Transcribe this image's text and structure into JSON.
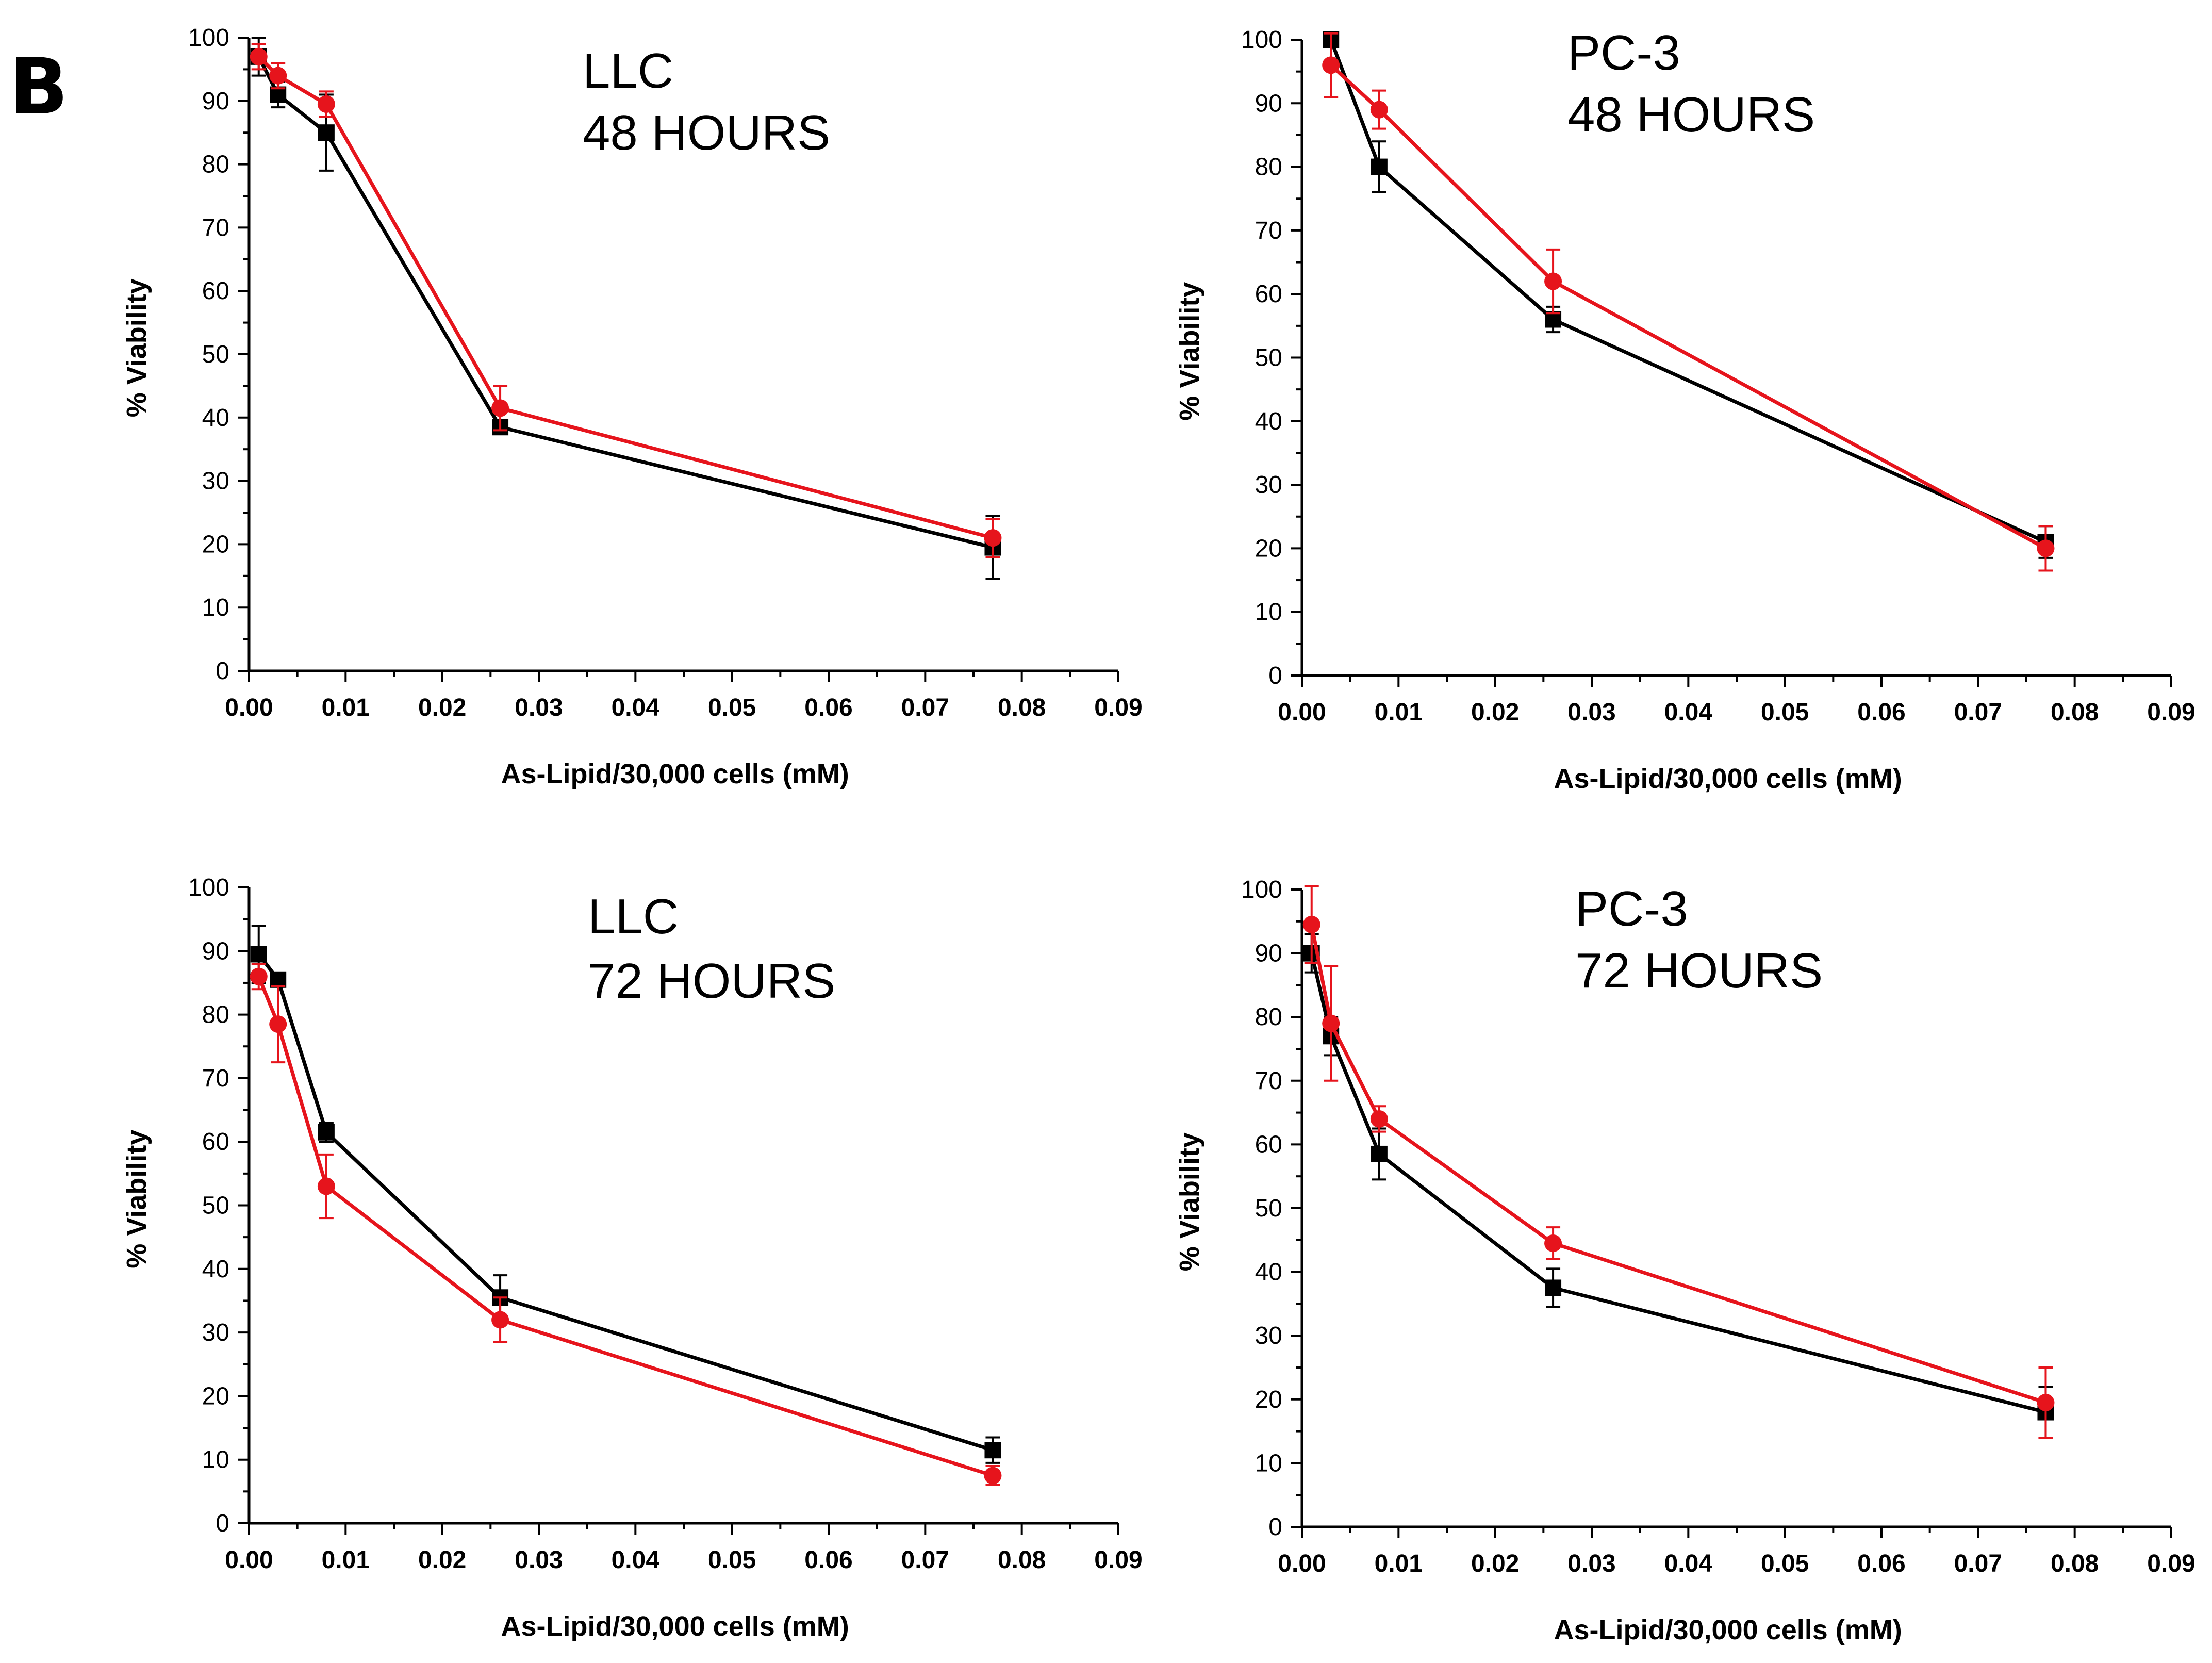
{
  "figure": {
    "letter": "B",
    "colors": {
      "control": "#000000",
      "treatment": "#e6141c"
    }
  },
  "chart_data": [
    {
      "type": "line",
      "label_line1": "LLC",
      "label_line2": "48 HOURS",
      "xlabel": "As-Lipid/30,000 cells (mM)",
      "ylabel": "% Viability",
      "xlim": [
        0,
        0.09
      ],
      "ylim": [
        0,
        100
      ],
      "xticks": [
        "0.00",
        "0.01",
        "0.02",
        "0.03",
        "0.04",
        "0.05",
        "0.06",
        "0.07",
        "0.08",
        "0.09"
      ],
      "yticks": [
        "0",
        "10",
        "20",
        "30",
        "40",
        "50",
        "60",
        "70",
        "80",
        "90",
        "100"
      ],
      "series": [
        {
          "name": "black",
          "color": "#000000",
          "marker": "square",
          "x": [
            0.001,
            0.003,
            0.008,
            0.026,
            0.077
          ],
          "y": [
            97,
            91,
            85,
            38.5,
            19.5
          ],
          "err": [
            3,
            2,
            6,
            1,
            5
          ]
        },
        {
          "name": "red",
          "color": "#e6141c",
          "marker": "circle",
          "x": [
            0.001,
            0.003,
            0.008,
            0.026,
            0.077
          ],
          "y": [
            97,
            94,
            89.5,
            41.5,
            21
          ],
          "err": [
            2,
            2,
            2,
            3.5,
            3
          ]
        }
      ]
    },
    {
      "type": "line",
      "label_line1": "PC-3",
      "label_line2": "48 HOURS",
      "xlabel": "As-Lipid/30,000 cells (mM)",
      "ylabel": "% Viability",
      "xlim": [
        0,
        0.09
      ],
      "ylim": [
        0,
        100
      ],
      "xticks": [
        "0.00",
        "0.01",
        "0.02",
        "0.03",
        "0.04",
        "0.05",
        "0.06",
        "0.07",
        "0.08",
        "0.09"
      ],
      "yticks": [
        "0",
        "10",
        "20",
        "30",
        "40",
        "50",
        "60",
        "70",
        "80",
        "90",
        "100"
      ],
      "series": [
        {
          "name": "black",
          "color": "#000000",
          "marker": "square",
          "x": [
            0.003,
            0.008,
            0.026,
            0.077
          ],
          "y": [
            100,
            80,
            56,
            21
          ],
          "err": [
            1,
            4,
            2,
            2.5
          ]
        },
        {
          "name": "red",
          "color": "#e6141c",
          "marker": "circle",
          "x": [
            0.003,
            0.008,
            0.026,
            0.077
          ],
          "y": [
            96,
            89,
            62,
            20
          ],
          "err": [
            5,
            3,
            5,
            3.5
          ]
        }
      ]
    },
    {
      "type": "line",
      "label_line1": "LLC",
      "label_line2": "72 HOURS",
      "xlabel": "As-Lipid/30,000 cells (mM)",
      "ylabel": "% Viability",
      "xlim": [
        0,
        0.09
      ],
      "ylim": [
        0,
        100
      ],
      "xticks": [
        "0.00",
        "0.01",
        "0.02",
        "0.03",
        "0.04",
        "0.05",
        "0.06",
        "0.07",
        "0.08",
        "0.09"
      ],
      "yticks": [
        "0",
        "10",
        "20",
        "30",
        "40",
        "50",
        "60",
        "70",
        "80",
        "90",
        "100"
      ],
      "series": [
        {
          "name": "black",
          "color": "#000000",
          "marker": "square",
          "x": [
            0.001,
            0.003,
            0.008,
            0.026,
            0.077
          ],
          "y": [
            89.5,
            85.5,
            61.5,
            35.5,
            11.5
          ],
          "err": [
            4.5,
            1,
            1.5,
            3.5,
            2
          ]
        },
        {
          "name": "red",
          "color": "#e6141c",
          "marker": "circle",
          "x": [
            0.001,
            0.003,
            0.008,
            0.026,
            0.077
          ],
          "y": [
            86,
            78.5,
            53,
            32,
            7.5
          ],
          "err": [
            2,
            6,
            5,
            3.5,
            1.5
          ]
        }
      ]
    },
    {
      "type": "line",
      "label_line1": "PC-3",
      "label_line2": "72 HOURS",
      "xlabel": "As-Lipid/30,000 cells (mM)",
      "ylabel": "% Viability",
      "xlim": [
        0,
        0.09
      ],
      "ylim": [
        0,
        100
      ],
      "xticks": [
        "0.00",
        "0.01",
        "0.02",
        "0.03",
        "0.04",
        "0.05",
        "0.06",
        "0.07",
        "0.08",
        "0.09"
      ],
      "yticks": [
        "0",
        "10",
        "20",
        "30",
        "40",
        "50",
        "60",
        "70",
        "80",
        "90",
        "100"
      ],
      "series": [
        {
          "name": "black",
          "color": "#000000",
          "marker": "square",
          "x": [
            0.001,
            0.003,
            0.008,
            0.026,
            0.077
          ],
          "y": [
            90,
            77,
            58.5,
            37.5,
            18
          ],
          "err": [
            3,
            3,
            4,
            3,
            4
          ]
        },
        {
          "name": "red",
          "color": "#e6141c",
          "marker": "circle",
          "x": [
            0.001,
            0.003,
            0.008,
            0.026,
            0.077
          ],
          "y": [
            94.5,
            79,
            64,
            44.5,
            19.5
          ],
          "err": [
            6,
            9,
            2,
            2.5,
            5.5
          ]
        }
      ]
    }
  ]
}
